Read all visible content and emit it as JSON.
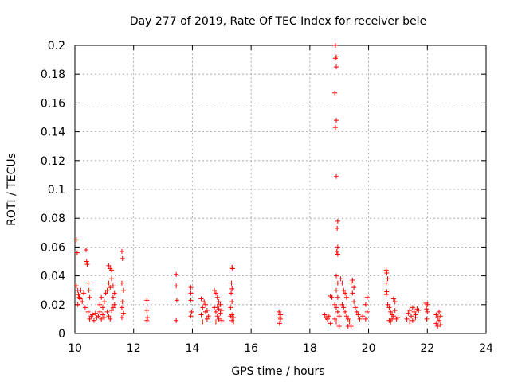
{
  "chart_data": {
    "type": "scatter",
    "title": "Day 277 of 2019, Rate Of TEC Index for receiver bele",
    "xlabel": "GPS time / hours",
    "ylabel": "ROTI / TECUs",
    "xlim": [
      10,
      24
    ],
    "ylim": [
      0,
      0.2
    ],
    "x_ticks": [
      "10",
      "12",
      "14",
      "16",
      "18",
      "20",
      "22",
      "24"
    ],
    "y_ticks": [
      "0",
      "0.02",
      "0.04",
      "0.06",
      "0.08",
      "0.1",
      "0.12",
      "0.14",
      "0.16",
      "0.18",
      "0.2"
    ],
    "grid": true,
    "marker": "+",
    "color": "#ff0000",
    "series": [
      {
        "name": "ROTI",
        "points": [
          [
            10.05,
            0.065
          ],
          [
            10.08,
            0.056
          ],
          [
            10.05,
            0.033
          ],
          [
            10.1,
            0.03
          ],
          [
            10.12,
            0.027
          ],
          [
            10.15,
            0.025
          ],
          [
            10.2,
            0.03
          ],
          [
            10.25,
            0.022
          ],
          [
            10.3,
            0.028
          ],
          [
            10.35,
            0.018
          ],
          [
            10.1,
            0.02
          ],
          [
            10.18,
            0.024
          ],
          [
            10.38,
            0.058
          ],
          [
            10.4,
            0.05
          ],
          [
            10.42,
            0.048
          ],
          [
            10.45,
            0.035
          ],
          [
            10.48,
            0.03
          ],
          [
            10.5,
            0.025
          ],
          [
            10.45,
            0.015
          ],
          [
            10.5,
            0.01
          ],
          [
            10.55,
            0.012
          ],
          [
            10.6,
            0.013
          ],
          [
            10.65,
            0.009
          ],
          [
            10.7,
            0.014
          ],
          [
            10.75,
            0.011
          ],
          [
            10.8,
            0.012
          ],
          [
            10.85,
            0.015
          ],
          [
            10.9,
            0.01
          ],
          [
            10.95,
            0.013
          ],
          [
            11.0,
            0.011
          ],
          [
            10.85,
            0.02
          ],
          [
            10.9,
            0.025
          ],
          [
            10.95,
            0.018
          ],
          [
            11.0,
            0.022
          ],
          [
            11.05,
            0.028
          ],
          [
            11.1,
            0.03
          ],
          [
            11.15,
            0.035
          ],
          [
            11.2,
            0.032
          ],
          [
            11.25,
            0.038
          ],
          [
            11.3,
            0.033
          ],
          [
            11.1,
            0.015
          ],
          [
            11.15,
            0.012
          ],
          [
            11.2,
            0.01
          ],
          [
            11.25,
            0.016
          ],
          [
            11.3,
            0.018
          ],
          [
            11.35,
            0.02
          ],
          [
            11.15,
            0.047
          ],
          [
            11.2,
            0.045
          ],
          [
            11.25,
            0.044
          ],
          [
            11.3,
            0.025
          ],
          [
            11.35,
            0.028
          ],
          [
            11.6,
            0.057
          ],
          [
            11.62,
            0.052
          ],
          [
            11.6,
            0.035
          ],
          [
            11.65,
            0.03
          ],
          [
            11.62,
            0.022
          ],
          [
            11.6,
            0.018
          ],
          [
            11.65,
            0.014
          ],
          [
            11.6,
            0.011
          ],
          [
            12.45,
            0.023
          ],
          [
            12.45,
            0.016
          ],
          [
            12.47,
            0.011
          ],
          [
            12.45,
            0.009
          ],
          [
            13.45,
            0.041
          ],
          [
            13.45,
            0.033
          ],
          [
            13.47,
            0.023
          ],
          [
            13.45,
            0.009
          ],
          [
            13.95,
            0.032
          ],
          [
            13.95,
            0.028
          ],
          [
            13.95,
            0.023
          ],
          [
            13.97,
            0.015
          ],
          [
            13.95,
            0.012
          ],
          [
            14.3,
            0.013
          ],
          [
            14.35,
            0.018
          ],
          [
            14.4,
            0.022
          ],
          [
            14.45,
            0.015
          ],
          [
            14.5,
            0.01
          ],
          [
            14.35,
            0.008
          ],
          [
            14.45,
            0.02
          ],
          [
            14.55,
            0.012
          ],
          [
            14.3,
            0.024
          ],
          [
            14.5,
            0.016
          ],
          [
            14.75,
            0.03
          ],
          [
            14.8,
            0.028
          ],
          [
            14.85,
            0.025
          ],
          [
            14.9,
            0.022
          ],
          [
            14.95,
            0.02
          ],
          [
            14.8,
            0.015
          ],
          [
            14.85,
            0.012
          ],
          [
            14.9,
            0.01
          ],
          [
            14.95,
            0.014
          ],
          [
            15.0,
            0.016
          ],
          [
            14.75,
            0.018
          ],
          [
            14.8,
            0.008
          ],
          [
            15.0,
            0.009
          ],
          [
            14.85,
            0.019
          ],
          [
            14.9,
            0.017
          ],
          [
            15.35,
            0.046
          ],
          [
            15.37,
            0.045
          ],
          [
            15.33,
            0.035
          ],
          [
            15.35,
            0.031
          ],
          [
            15.32,
            0.028
          ],
          [
            15.35,
            0.022
          ],
          [
            15.3,
            0.018
          ],
          [
            15.35,
            0.013
          ],
          [
            15.4,
            0.011
          ],
          [
            15.35,
            0.009
          ],
          [
            15.3,
            0.012
          ],
          [
            15.4,
            0.008
          ],
          [
            16.95,
            0.015
          ],
          [
            17.0,
            0.013
          ],
          [
            16.98,
            0.011
          ],
          [
            17.0,
            0.01
          ],
          [
            16.97,
            0.007
          ],
          [
            18.5,
            0.013
          ],
          [
            18.55,
            0.011
          ],
          [
            18.6,
            0.01
          ],
          [
            18.65,
            0.012
          ],
          [
            18.7,
            0.026
          ],
          [
            18.75,
            0.025
          ],
          [
            18.7,
            0.007
          ],
          [
            18.87,
            0.2
          ],
          [
            18.87,
            0.191
          ],
          [
            18.9,
            0.192
          ],
          [
            18.9,
            0.185
          ],
          [
            18.85,
            0.167
          ],
          [
            18.9,
            0.148
          ],
          [
            18.87,
            0.143
          ],
          [
            18.9,
            0.109
          ],
          [
            18.95,
            0.078
          ],
          [
            18.93,
            0.073
          ],
          [
            18.95,
            0.06
          ],
          [
            18.92,
            0.057
          ],
          [
            18.95,
            0.055
          ],
          [
            18.9,
            0.04
          ],
          [
            18.95,
            0.035
          ],
          [
            18.9,
            0.03
          ],
          [
            18.95,
            0.025
          ],
          [
            18.85,
            0.02
          ],
          [
            18.9,
            0.018
          ],
          [
            18.95,
            0.015
          ],
          [
            19.0,
            0.012
          ],
          [
            18.85,
            0.01
          ],
          [
            18.9,
            0.008
          ],
          [
            19.0,
            0.005
          ],
          [
            19.05,
            0.038
          ],
          [
            19.1,
            0.035
          ],
          [
            19.15,
            0.03
          ],
          [
            19.2,
            0.028
          ],
          [
            19.25,
            0.025
          ],
          [
            19.1,
            0.02
          ],
          [
            19.15,
            0.018
          ],
          [
            19.2,
            0.015
          ],
          [
            19.25,
            0.012
          ],
          [
            19.3,
            0.01
          ],
          [
            19.35,
            0.008
          ],
          [
            19.4,
            0.035
          ],
          [
            19.45,
            0.037
          ],
          [
            19.5,
            0.032
          ],
          [
            19.45,
            0.028
          ],
          [
            19.5,
            0.022
          ],
          [
            19.55,
            0.018
          ],
          [
            19.6,
            0.015
          ],
          [
            19.65,
            0.013
          ],
          [
            19.7,
            0.01
          ],
          [
            19.8,
            0.012
          ],
          [
            19.9,
            0.02
          ],
          [
            19.95,
            0.015
          ],
          [
            19.9,
            0.01
          ],
          [
            19.95,
            0.025
          ],
          [
            19.4,
            0.005
          ],
          [
            19.3,
            0.005
          ],
          [
            20.6,
            0.044
          ],
          [
            20.62,
            0.042
          ],
          [
            20.65,
            0.038
          ],
          [
            20.6,
            0.035
          ],
          [
            20.62,
            0.029
          ],
          [
            20.6,
            0.027
          ],
          [
            20.65,
            0.02
          ],
          [
            20.7,
            0.018
          ],
          [
            20.75,
            0.015
          ],
          [
            20.8,
            0.013
          ],
          [
            20.85,
            0.012
          ],
          [
            20.9,
            0.016
          ],
          [
            20.95,
            0.01
          ],
          [
            21.0,
            0.011
          ],
          [
            20.7,
            0.009
          ],
          [
            20.8,
            0.01
          ],
          [
            20.85,
            0.024
          ],
          [
            20.9,
            0.022
          ],
          [
            20.75,
            0.008
          ],
          [
            21.3,
            0.01
          ],
          [
            21.35,
            0.014
          ],
          [
            21.4,
            0.016
          ],
          [
            21.45,
            0.012
          ],
          [
            21.5,
            0.018
          ],
          [
            21.55,
            0.015
          ],
          [
            21.6,
            0.013
          ],
          [
            21.65,
            0.017
          ],
          [
            21.7,
            0.016
          ],
          [
            21.5,
            0.009
          ],
          [
            21.6,
            0.011
          ],
          [
            21.4,
            0.008
          ],
          [
            21.95,
            0.021
          ],
          [
            22.0,
            0.02
          ],
          [
            21.97,
            0.017
          ],
          [
            22.0,
            0.015
          ],
          [
            21.98,
            0.01
          ],
          [
            22.3,
            0.013
          ],
          [
            22.35,
            0.011
          ],
          [
            22.4,
            0.015
          ],
          [
            22.45,
            0.012
          ],
          [
            22.3,
            0.007
          ],
          [
            22.4,
            0.009
          ],
          [
            22.35,
            0.005
          ],
          [
            22.45,
            0.006
          ]
        ]
      }
    ]
  }
}
